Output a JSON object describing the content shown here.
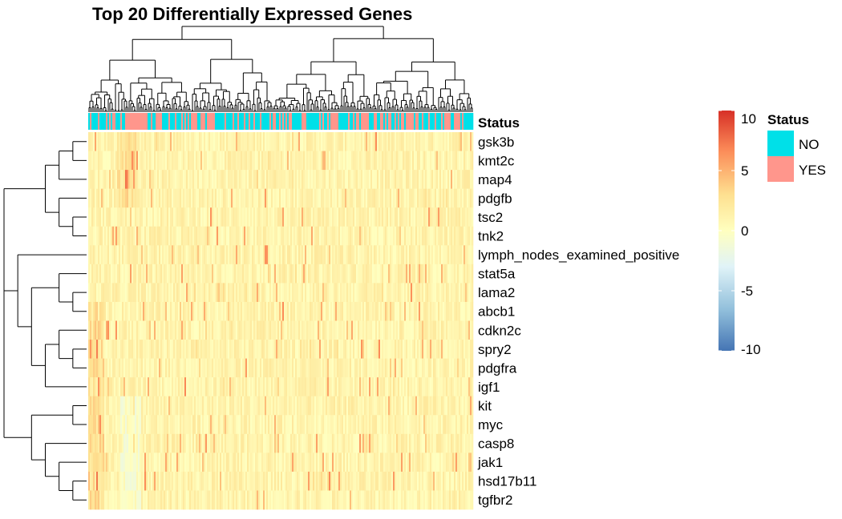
{
  "chart_data": {
    "type": "heatmap",
    "title": "Top 20 Differentially Expressed Genes",
    "rows": [
      "gsk3b",
      "kmt2c",
      "map4",
      "pdgfb",
      "tsc2",
      "tnk2",
      "lymph_nodes_examined_positive",
      "stat5a",
      "lama2",
      "abcb1",
      "cdkn2c",
      "spry2",
      "pdgfra",
      "igf1",
      "kit",
      "myc",
      "casp8",
      "jak1",
      "hsd17b11",
      "tgfbr2"
    ],
    "annotation": {
      "name": "Status",
      "categories": [
        "NO",
        "YES"
      ],
      "colors": {
        "NO": "#00E0E8",
        "YES": "#FF968C"
      }
    },
    "color_scale": {
      "range": [
        -10,
        10
      ],
      "ticks": [
        "10",
        "5",
        "0",
        "-5",
        "-10"
      ],
      "colors": [
        "#4575B4",
        "#91BFDB",
        "#E0F3F8",
        "#FFFFBF",
        "#FEE090",
        "#FC8D59",
        "#D73027"
      ]
    },
    "row_dendrogram": true,
    "column_dendrogram": true,
    "legend_position": "right"
  }
}
